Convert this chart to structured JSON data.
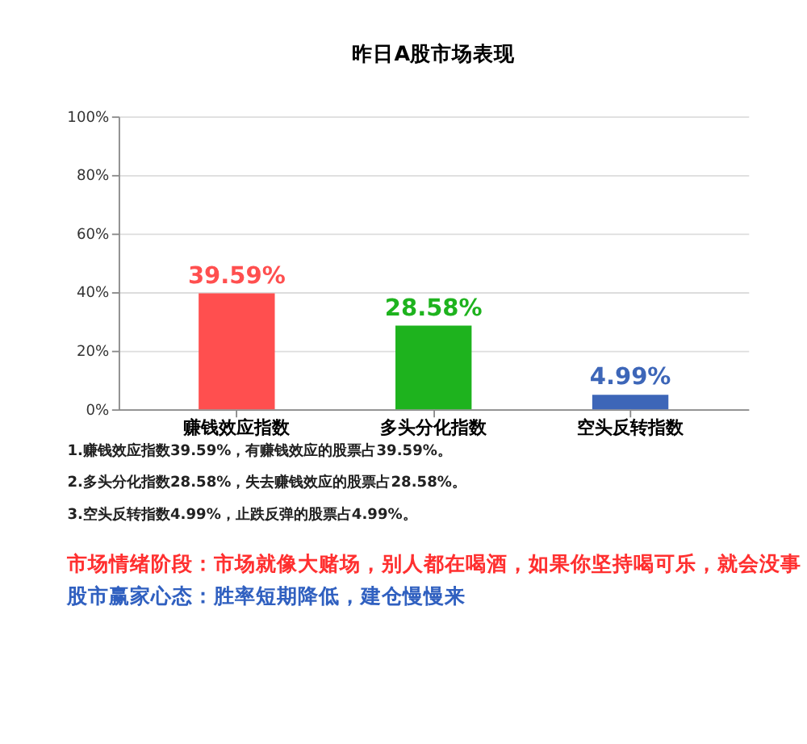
{
  "chart_data": {
    "type": "bar",
    "title": "昨日A股市场表现",
    "categories": [
      "赚钱效应指数",
      "多头分化指数",
      "空头反转指数"
    ],
    "values": [
      39.59,
      28.58,
      4.99
    ],
    "colors": [
      "#ff4f4f",
      "#1eb31e",
      "#3d66b8"
    ],
    "value_labels": [
      "39.59%",
      "28.58%",
      "4.99%"
    ],
    "ylim": [
      0,
      100
    ],
    "yticks": [
      {
        "value": 0,
        "label": "0%"
      },
      {
        "value": 20,
        "label": "20%"
      },
      {
        "value": 40,
        "label": "40%"
      },
      {
        "value": 60,
        "label": "60%"
      },
      {
        "value": 80,
        "label": "80%"
      },
      {
        "value": 100,
        "label": "100%"
      }
    ],
    "grid": "y",
    "annotations": [
      "1.赚钱效应指数39.59%，有赚钱效应的股票占39.59%。",
      "2.多头分化指数28.58%，失去赚钱效应的股票占28.58%。",
      "3.空头反转指数4.99%，止跌反弹的股票占4.99%。",
      "市场情绪阶段：市场就像大赌场，别人都在喝酒，如果你坚持喝可乐，就会没事",
      "股市赢家心态：胜率短期降低，建仓慢慢来"
    ]
  }
}
